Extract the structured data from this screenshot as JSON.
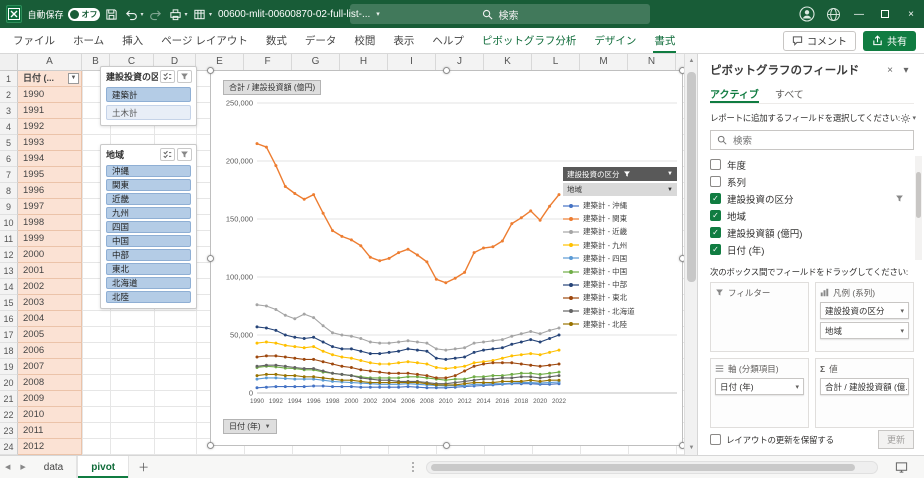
{
  "icons": {
    "caret_down": "▾",
    "dropdown": "▼",
    "arrow_up": "▲",
    "arrow_down": "▼",
    "arrow_left": "◀",
    "arrow_right": "▶",
    "close": "×",
    "minimize": "—",
    "check": "✓",
    "sigma": "Σ",
    "plus": "＋"
  },
  "titlebar": {
    "autosave_label": "自動保存",
    "autosave_state": "オフ",
    "filename": "00600-mlit-00600870-02-full-list-...",
    "search_placeholder": "検索"
  },
  "ribbon": {
    "tabs": [
      {
        "label": "ファイル",
        "contextual": false,
        "active": false
      },
      {
        "label": "ホーム",
        "contextual": false,
        "active": false
      },
      {
        "label": "挿入",
        "contextual": false,
        "active": false
      },
      {
        "label": "ページ レイアウト",
        "contextual": false,
        "active": false
      },
      {
        "label": "数式",
        "contextual": false,
        "active": false
      },
      {
        "label": "データ",
        "contextual": false,
        "active": false
      },
      {
        "label": "校閲",
        "contextual": false,
        "active": false
      },
      {
        "label": "表示",
        "contextual": false,
        "active": false
      },
      {
        "label": "ヘルプ",
        "contextual": false,
        "active": false
      },
      {
        "label": "ピボットグラフ分析",
        "contextual": true,
        "active": false
      },
      {
        "label": "デザイン",
        "contextual": true,
        "active": false
      },
      {
        "label": "書式",
        "contextual": true,
        "active": true
      }
    ],
    "comments_label": "コメント",
    "share_label": "共有"
  },
  "grid": {
    "column_headers": [
      "A",
      "B",
      "C",
      "D",
      "E",
      "F",
      "G",
      "H",
      "I",
      "J",
      "K",
      "L",
      "M",
      "N"
    ],
    "row_count": 24,
    "a1_header": "日付 (...",
    "years": [
      1990,
      1991,
      1992,
      1993,
      1994,
      1995,
      1996,
      1997,
      1998,
      1999,
      2000,
      2001,
      2002,
      2003,
      2004,
      2005,
      2006,
      2007,
      2008,
      2009,
      2010,
      2011,
      2012
    ]
  },
  "slicers": [
    {
      "title": "建設投資の区分",
      "items": [
        {
          "label": "建築計",
          "selected": true
        },
        {
          "label": "土木計",
          "selected": false
        }
      ]
    },
    {
      "title": "地域",
      "items": [
        {
          "label": "沖縄",
          "selected": true
        },
        {
          "label": "関東",
          "selected": true
        },
        {
          "label": "近畿",
          "selected": true
        },
        {
          "label": "九州",
          "selected": true
        },
        {
          "label": "四国",
          "selected": true
        },
        {
          "label": "中国",
          "selected": true
        },
        {
          "label": "中部",
          "selected": true
        },
        {
          "label": "東北",
          "selected": true
        },
        {
          "label": "北海道",
          "selected": true
        },
        {
          "label": "北陸",
          "selected": true
        }
      ]
    }
  ],
  "chart_data": {
    "type": "line",
    "title": "合計 / 建設投資額 (億円)",
    "axis_field_button": "日付 (年)",
    "legend_filter_buttons": [
      "建設投資の区分",
      "地域"
    ],
    "legend_position": "right",
    "grid": true,
    "ylim": [
      0,
      250000
    ],
    "ytick_step": 50000,
    "x_tick_interval": 2,
    "x": [
      1990,
      1991,
      1992,
      1993,
      1994,
      1995,
      1996,
      1997,
      1998,
      1999,
      2000,
      2001,
      2002,
      2003,
      2004,
      2005,
      2006,
      2007,
      2008,
      2009,
      2010,
      2011,
      2012,
      2013,
      2014,
      2015,
      2016,
      2017,
      2018,
      2019,
      2020,
      2021,
      2022
    ],
    "series": [
      {
        "name": "建築計 - 沖縄",
        "color": "#4472C4",
        "values": [
          4500,
          5000,
          5500,
          5500,
          5500,
          5500,
          6000,
          6000,
          5500,
          5500,
          5500,
          5000,
          5000,
          5000,
          5000,
          5000,
          5500,
          5000,
          4500,
          4500,
          4500,
          5000,
          5500,
          6000,
          6500,
          7000,
          7500,
          8000,
          8000,
          8000,
          7500,
          7500,
          8000
        ]
      },
      {
        "name": "建築計 - 関東",
        "color": "#ED7D31",
        "emphasis": true,
        "values": [
          215000,
          212000,
          196000,
          178000,
          172000,
          167000,
          171000,
          155000,
          140000,
          135000,
          132000,
          127000,
          117000,
          114000,
          116000,
          121000,
          124000,
          119000,
          113000,
          98000,
          95000,
          99000,
          104000,
          121000,
          125000,
          126000,
          131000,
          146000,
          151000,
          157000,
          149000,
          161000,
          171000
        ]
      },
      {
        "name": "建築計 - 近畿",
        "color": "#A5A5A5",
        "values": [
          76000,
          75000,
          72000,
          67000,
          64000,
          68000,
          65000,
          58000,
          52000,
          50000,
          49000,
          47000,
          44000,
          43000,
          43000,
          44000,
          45000,
          44000,
          43000,
          38000,
          37000,
          38000,
          39000,
          43000,
          44000,
          45000,
          46000,
          49000,
          51000,
          53000,
          51000,
          54000,
          56000
        ]
      },
      {
        "name": "建築計 - 九州",
        "color": "#FFC000",
        "values": [
          43000,
          44000,
          43000,
          41000,
          40000,
          39000,
          40000,
          36000,
          33000,
          31000,
          30000,
          28000,
          26000,
          25000,
          25000,
          26000,
          27000,
          26000,
          25000,
          22000,
          21000,
          22000,
          23000,
          26000,
          27000,
          28000,
          30000,
          32000,
          33000,
          34000,
          33000,
          35000,
          37000
        ]
      },
      {
        "name": "建築計 - 四国",
        "color": "#5B9BD5",
        "values": [
          12000,
          13000,
          13000,
          12500,
          12000,
          12000,
          12000,
          11000,
          10000,
          9500,
          9000,
          8500,
          8000,
          7500,
          7500,
          7500,
          8000,
          7500,
          7000,
          6500,
          6000,
          6500,
          6500,
          7500,
          7500,
          8000,
          8000,
          8500,
          9000,
          9000,
          8500,
          9000,
          9500
        ]
      },
      {
        "name": "建築計 - 中国",
        "color": "#70AD47",
        "values": [
          22000,
          23000,
          22500,
          21500,
          21000,
          20000,
          20000,
          18000,
          17000,
          16000,
          15000,
          14000,
          13000,
          13000,
          13000,
          13000,
          14000,
          14000,
          13000,
          12000,
          11000,
          12000,
          12000,
          14000,
          14000,
          15000,
          15000,
          16000,
          17000,
          17000,
          16000,
          17000,
          18000
        ]
      },
      {
        "name": "建築計 - 中部",
        "color": "#264478",
        "values": [
          57000,
          56000,
          54000,
          50000,
          48000,
          47000,
          48000,
          44000,
          40000,
          38000,
          38000,
          36000,
          34000,
          34000,
          35000,
          36000,
          38000,
          37000,
          36000,
          30000,
          29000,
          30000,
          31000,
          35000,
          37000,
          38000,
          39000,
          42000,
          44000,
          46000,
          44000,
          47000,
          50000
        ]
      },
      {
        "name": "建築計 - 東北",
        "color": "#9E480E",
        "values": [
          31000,
          32000,
          32000,
          31000,
          30000,
          29000,
          29000,
          27000,
          25000,
          23000,
          22000,
          20000,
          19000,
          18000,
          17000,
          17000,
          17000,
          16000,
          15000,
          13000,
          13000,
          15000,
          19000,
          23000,
          25000,
          26000,
          26000,
          26000,
          25000,
          24000,
          23000,
          24000,
          25000
        ]
      },
      {
        "name": "建築計 - 北海道",
        "color": "#636363",
        "values": [
          23000,
          24000,
          24000,
          23000,
          22000,
          21000,
          21000,
          19000,
          17000,
          16000,
          15000,
          13000,
          12000,
          11000,
          11000,
          10000,
          10000,
          10000,
          9000,
          8000,
          8000,
          9000,
          10000,
          11000,
          12000,
          12000,
          13000,
          13000,
          14000,
          14000,
          13000,
          14000,
          15000
        ]
      },
      {
        "name": "建築計 - 北陸",
        "color": "#997300",
        "values": [
          15000,
          16000,
          16000,
          15000,
          15000,
          14000,
          14000,
          13000,
          12000,
          11000,
          11000,
          10000,
          9000,
          9000,
          9000,
          9000,
          9000,
          9000,
          8000,
          7000,
          7000,
          7000,
          8000,
          9000,
          9000,
          9000,
          10000,
          10000,
          10000,
          11000,
          10000,
          11000,
          11000
        ]
      }
    ]
  },
  "field_pane": {
    "title": "ピボットグラフのフィールド",
    "tabs": [
      {
        "label": "アクティブ",
        "active": true
      },
      {
        "label": "すべて",
        "active": false
      }
    ],
    "instruction": "レポートに追加するフィールドを選択してください:",
    "search_placeholder": "検索",
    "fields": [
      {
        "label": "年度",
        "checked": false,
        "filtered": false
      },
      {
        "label": "系列",
        "checked": false,
        "filtered": false
      },
      {
        "label": "建設投資の区分",
        "checked": true,
        "filtered": true
      },
      {
        "label": "地域",
        "checked": true,
        "filtered": false
      },
      {
        "label": "建設投資額 (億円)",
        "checked": true,
        "filtered": false
      },
      {
        "label": "日付 (年)",
        "checked": true,
        "filtered": false
      }
    ],
    "drag_instruction": "次のボックス間でフィールドをドラッグしてください:",
    "areas": {
      "filters": {
        "label": "フィルター",
        "items": []
      },
      "legend": {
        "label": "凡例 (系列)",
        "items": [
          "建設投資の区分",
          "地域"
        ]
      },
      "axis": {
        "label": "軸 (分類項目)",
        "items": [
          "日付 (年)"
        ]
      },
      "values": {
        "label": "値",
        "items": [
          "合計 / 建設投資額 (億..."
        ]
      }
    },
    "defer_label": "レイアウトの更新を保留する",
    "update_label": "更新"
  },
  "sheet_bar": {
    "tabs": [
      {
        "label": "data",
        "active": false
      },
      {
        "label": "pivot",
        "active": true
      }
    ]
  }
}
